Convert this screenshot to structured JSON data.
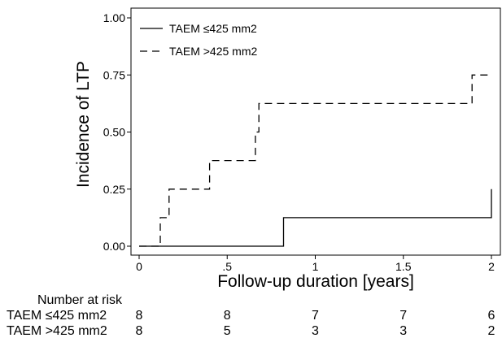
{
  "chart_data": {
    "type": "line",
    "chart_kind": "kaplan-meier cumulative incidence (step)",
    "xlabel": "Follow-up duration [years]",
    "ylabel": "Incidence of LTP",
    "xlim": [
      0,
      2
    ],
    "ylim": [
      0,
      1
    ],
    "x_ticks": [
      "0",
      ".5",
      "1",
      "1.5",
      "2"
    ],
    "x_tick_values": [
      0,
      0.5,
      1,
      1.5,
      2
    ],
    "y_ticks": [
      "0.00",
      "0.25",
      "0.50",
      "0.75",
      "1.00"
    ],
    "y_tick_values": [
      0,
      0.25,
      0.5,
      0.75,
      1
    ],
    "grid": false,
    "legend_position": "top-left",
    "series": [
      {
        "name": "TAEM ≤425 mm2",
        "style": "solid",
        "color": "#000000",
        "x": [
          0,
          0.82,
          0.82,
          2.0,
          2.0
        ],
        "y": [
          0,
          0,
          0.125,
          0.125,
          0.25
        ]
      },
      {
        "name": "TAEM >425 mm2",
        "style": "dashed",
        "color": "#000000",
        "x": [
          0,
          0.12,
          0.12,
          0.17,
          0.17,
          0.4,
          0.4,
          0.66,
          0.66,
          0.68,
          0.68,
          1.89,
          1.89,
          2.0
        ],
        "y": [
          0,
          0,
          0.125,
          0.125,
          0.25,
          0.25,
          0.375,
          0.375,
          0.5,
          0.5,
          0.625,
          0.625,
          0.75,
          0.75
        ]
      }
    ],
    "risk_table": {
      "title": "Number at risk",
      "rows": [
        {
          "label": "TAEM ≤425 mm2",
          "values": [
            "8",
            "8",
            "7",
            "7",
            "6"
          ]
        },
        {
          "label": "TAEM >425 mm2",
          "values": [
            "8",
            "5",
            "3",
            "3",
            "2"
          ]
        }
      ]
    }
  }
}
